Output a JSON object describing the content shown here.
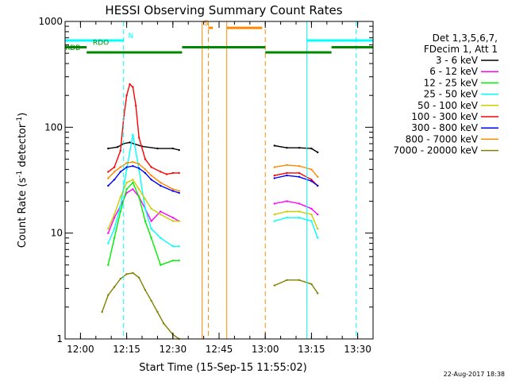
{
  "chart_data": {
    "type": "line",
    "title": "HESSI Observing Summary Count Rates",
    "xlabel": "Start Time (15-Sep-15 11:55:02)",
    "ylabel_main": "Count Rate (s",
    "ylabel_sup": "-1",
    "ylabel_mid": " detector",
    "ylabel_end": ")",
    "x_unit": "minutes after 11:55",
    "xlim": [
      0,
      100
    ],
    "ylim": [
      1,
      1000
    ],
    "yscale": "log",
    "xticks": [
      {
        "label": "12:00",
        "value": 5
      },
      {
        "label": "12:15",
        "value": 20
      },
      {
        "label": "12:30",
        "value": 35
      },
      {
        "label": "12:45",
        "value": 50
      },
      {
        "label": "13:00",
        "value": 65
      },
      {
        "label": "13:15",
        "value": 80
      },
      {
        "label": "13:30",
        "value": 95
      }
    ],
    "yticks": [
      {
        "label": "1",
        "value": 1
      },
      {
        "label": "10",
        "value": 10
      },
      {
        "label": "100",
        "value": 100
      },
      {
        "label": "1000",
        "value": 1000
      }
    ],
    "legend_position": "right",
    "legend_header": [
      "Det 1,3,5,6,7,",
      "FDecim 1, Att 1"
    ],
    "series": [
      {
        "name": "3 - 6 keV",
        "color": "#000000",
        "x": [
          14,
          17,
          19,
          21,
          25,
          30,
          35,
          37,
          68,
          72,
          76,
          80,
          82
        ],
        "y": [
          63,
          65,
          70,
          72,
          66,
          63,
          63,
          61,
          67,
          64,
          64,
          63,
          58
        ]
      },
      {
        "name": "6 - 12 keV",
        "color": "#ff00ff",
        "x": [
          14,
          16,
          18,
          20,
          22,
          24,
          26,
          28,
          31,
          35,
          37,
          68,
          72,
          76,
          80,
          82
        ],
        "y": [
          10,
          14,
          18,
          24,
          26,
          22,
          17,
          13,
          16,
          14,
          13,
          19,
          20,
          19,
          17,
          15
        ]
      },
      {
        "name": "12 - 25 keV",
        "color": "#00ee00",
        "x": [
          14,
          16,
          18,
          20,
          22,
          24,
          26,
          28,
          31,
          35,
          37
        ],
        "y": [
          5,
          9,
          16,
          26,
          30,
          22,
          13,
          9,
          5,
          5.5,
          5.5
        ]
      },
      {
        "name": "25 - 50 keV",
        "color": "#00ffff",
        "x": [
          14,
          16,
          18,
          20,
          22,
          24,
          26,
          28,
          31,
          35,
          37,
          68,
          72,
          76,
          80,
          82
        ],
        "y": [
          8,
          11,
          18,
          40,
          85,
          40,
          17,
          11,
          9,
          7.5,
          7.5,
          13,
          14,
          14,
          13,
          9
        ]
      },
      {
        "name": "50 - 100 keV",
        "color": "#cccc00",
        "x": [
          14,
          16,
          18,
          20,
          22,
          24,
          26,
          28,
          31,
          35,
          37,
          68,
          72,
          76,
          80,
          82
        ],
        "y": [
          11,
          15,
          22,
          30,
          32,
          26,
          21,
          17,
          15,
          13,
          13,
          15,
          16,
          16,
          15,
          11
        ]
      },
      {
        "name": "100 - 300 keV",
        "color": "#ff0000",
        "x": [
          14,
          16,
          18,
          19,
          20,
          21,
          22,
          23,
          24,
          26,
          28,
          31,
          33,
          35,
          37,
          68,
          72,
          76,
          80,
          82
        ],
        "y": [
          38,
          42,
          60,
          120,
          200,
          255,
          240,
          160,
          80,
          50,
          42,
          38,
          36,
          37,
          37,
          35,
          37,
          37,
          32,
          28
        ]
      },
      {
        "name": "300 - 800 keV",
        "color": "#0000ff",
        "x": [
          14,
          16,
          18,
          20,
          22,
          24,
          26,
          28,
          31,
          35,
          37,
          68,
          72,
          76,
          80,
          82
        ],
        "y": [
          28,
          32,
          38,
          42,
          43,
          41,
          37,
          32,
          28,
          25,
          24,
          33,
          35,
          34,
          31,
          28
        ]
      },
      {
        "name": "800 - 7000 keV",
        "color": "#ff8800",
        "x": [
          14,
          16,
          18,
          20,
          22,
          24,
          26,
          28,
          31,
          35,
          37,
          68,
          72,
          76,
          80,
          82
        ],
        "y": [
          33,
          38,
          42,
          46,
          47,
          45,
          40,
          35,
          30,
          26,
          25,
          42,
          44,
          43,
          40,
          34
        ]
      },
      {
        "name": "7000 - 20000 keV",
        "color": "#808000",
        "x": [
          12,
          14,
          16,
          18,
          20,
          22,
          24,
          26,
          28,
          30,
          32,
          35,
          37,
          68,
          72,
          76,
          80,
          82
        ],
        "y": [
          1.8,
          2.6,
          3.1,
          3.7,
          4.1,
          4.2,
          3.8,
          2.9,
          2.3,
          1.8,
          1.4,
          1.1,
          1.0,
          3.2,
          3.6,
          3.6,
          3.3,
          2.7
        ]
      }
    ],
    "vlines": [
      {
        "x": 0,
        "color": "#00ffff",
        "style": "solid"
      },
      {
        "x": 19,
        "color": "#00ffff",
        "style": "dashed"
      },
      {
        "x": 78.5,
        "color": "#00ffff",
        "style": "solid"
      },
      {
        "x": 94.5,
        "color": "#00ffff",
        "style": "dashed"
      },
      {
        "x": 44.5,
        "color": "#ff8800",
        "style": "solid"
      },
      {
        "x": 46.5,
        "color": "#ff8800",
        "style": "dashed"
      },
      {
        "x": 52.5,
        "color": "#ff8800",
        "style": "solid"
      },
      {
        "x": 65,
        "color": "#ff8800",
        "style": "dashed"
      }
    ],
    "flag_bars": [
      {
        "label": "N",
        "color": "#00ffff",
        "y": 660,
        "segments": [
          [
            0,
            19
          ],
          [
            78.5,
            100
          ]
        ],
        "label_x": 20.5
      },
      {
        "label": "S",
        "color": "#ff8800",
        "y": 870,
        "segments": [
          [
            46.5,
            48
          ],
          [
            52.5,
            64
          ]
        ],
        "label_x": 45
      },
      {
        "label": "RDO",
        "color": "#008800",
        "y": 570,
        "segments": [
          [
            0,
            7
          ],
          [
            38,
            65
          ],
          [
            86.5,
            100
          ]
        ],
        "label_x": 9
      },
      {
        "label": "RDB",
        "color": "#008800",
        "y": 510,
        "segments": [
          [
            7,
            38
          ],
          [
            65,
            86.5
          ]
        ],
        "label_x": 0
      }
    ],
    "footer_timestamp": "22-Aug-2017 18:38"
  }
}
